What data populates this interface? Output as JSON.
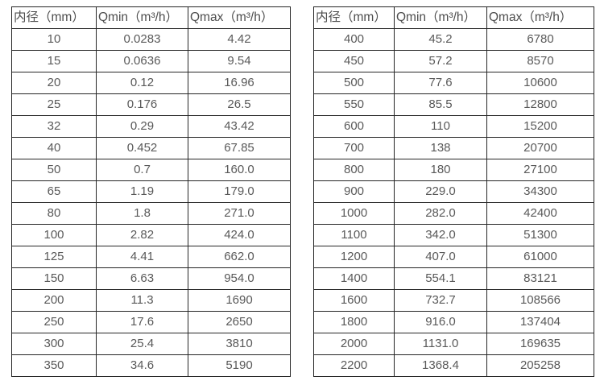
{
  "colors": {
    "background": "#ffffff",
    "border": "#262626",
    "header_text": "#4d4d4d",
    "cell_text": "#595959"
  },
  "chart_data": [
    {
      "type": "table",
      "name": "flow-rate-table-small-diameters",
      "columns": [
        "内径（mm）",
        "Qmin（m³/h）",
        "Qmax（m³/h）"
      ],
      "rows": [
        [
          "10",
          "0.0283",
          "4.42"
        ],
        [
          "15",
          "0.0636",
          "9.54"
        ],
        [
          "20",
          "0.12",
          "16.96"
        ],
        [
          "25",
          "0.176",
          "26.5"
        ],
        [
          "32",
          "0.29",
          "43.42"
        ],
        [
          "40",
          "0.452",
          "67.85"
        ],
        [
          "50",
          "0.7",
          "160.0"
        ],
        [
          "65",
          "1.19",
          "179.0"
        ],
        [
          "80",
          "1.8",
          "271.0"
        ],
        [
          "100",
          "2.82",
          "424.0"
        ],
        [
          "125",
          "4.41",
          "662.0"
        ],
        [
          "150",
          "6.63",
          "954.0"
        ],
        [
          "200",
          "11.3",
          "1690"
        ],
        [
          "250",
          "17.6",
          "2650"
        ],
        [
          "300",
          "25.4",
          "3810"
        ],
        [
          "350",
          "34.6",
          "5190"
        ]
      ]
    },
    {
      "type": "table",
      "name": "flow-rate-table-large-diameters",
      "columns": [
        "内径（mm）",
        "Qmin（m³/h）",
        "Qmax（m³/h）"
      ],
      "rows": [
        [
          "400",
          "45.2",
          "6780"
        ],
        [
          "450",
          "57.2",
          "8570"
        ],
        [
          "500",
          "77.6",
          "10600"
        ],
        [
          "550",
          "85.5",
          "12800"
        ],
        [
          "600",
          "110",
          "15200"
        ],
        [
          "700",
          "138",
          "20700"
        ],
        [
          "800",
          "180",
          "27100"
        ],
        [
          "900",
          "229.0",
          "34300"
        ],
        [
          "1000",
          "282.0",
          "42400"
        ],
        [
          "1100",
          "342.0",
          "51300"
        ],
        [
          "1200",
          "407.0",
          "61000"
        ],
        [
          "1400",
          "554.1",
          "83121"
        ],
        [
          "1600",
          "732.7",
          "108566"
        ],
        [
          "1800",
          "916.0",
          "137404"
        ],
        [
          "2000",
          "1131.0",
          "169635"
        ],
        [
          "2200",
          "1368.4",
          "205258"
        ]
      ]
    }
  ]
}
